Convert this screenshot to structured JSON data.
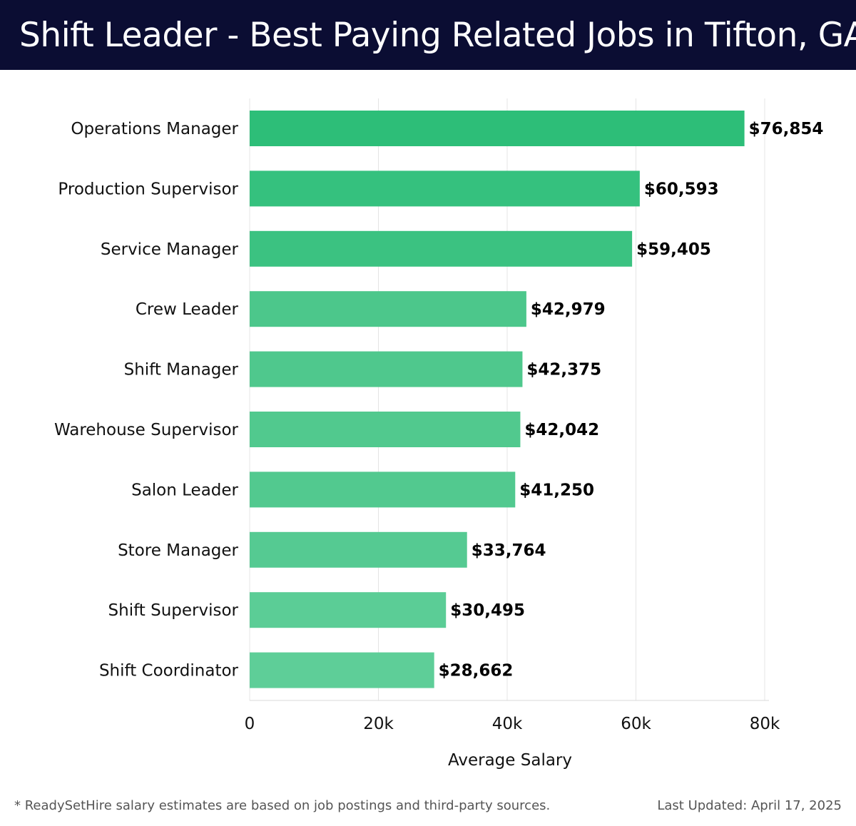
{
  "header": {
    "title": "Shift Leader - Best Paying Related Jobs in Tifton, GA"
  },
  "footer": {
    "note": "* ReadySetHire salary estimates are based on job postings and third-party sources.",
    "updated": "Last Updated: April 17, 2025"
  },
  "colors": {
    "header_bg": "#0b0d33",
    "bar_palette": [
      "#2dbe78",
      "#35c17e",
      "#3bc281",
      "#4cc78b",
      "#4fc88d",
      "#51c98e",
      "#52c98f",
      "#55ca92",
      "#5bcd96",
      "#5ece98"
    ]
  },
  "chart_data": {
    "type": "bar",
    "orientation": "horizontal",
    "categories": [
      "Operations Manager",
      "Production Supervisor",
      "Service Manager",
      "Crew Leader",
      "Shift Manager",
      "Warehouse Supervisor",
      "Salon Leader",
      "Store Manager",
      "Shift Supervisor",
      "Shift Coordinator"
    ],
    "values": [
      76854,
      60593,
      59405,
      42979,
      42375,
      42042,
      41250,
      33764,
      30495,
      28662
    ],
    "value_labels": [
      "$76,854",
      "$60,593",
      "$59,405",
      "$42,979",
      "$42,375",
      "$42,042",
      "$41,250",
      "$33,764",
      "$30,495",
      "$28,662"
    ],
    "xlabel": "Average Salary",
    "ylabel": "",
    "xlim": [
      0,
      80000
    ],
    "xticks": [
      0,
      20000,
      40000,
      60000,
      80000
    ],
    "xtick_labels": [
      "0",
      "20k",
      "40k",
      "60k",
      "80k"
    ],
    "grid": true,
    "legend": "none"
  }
}
